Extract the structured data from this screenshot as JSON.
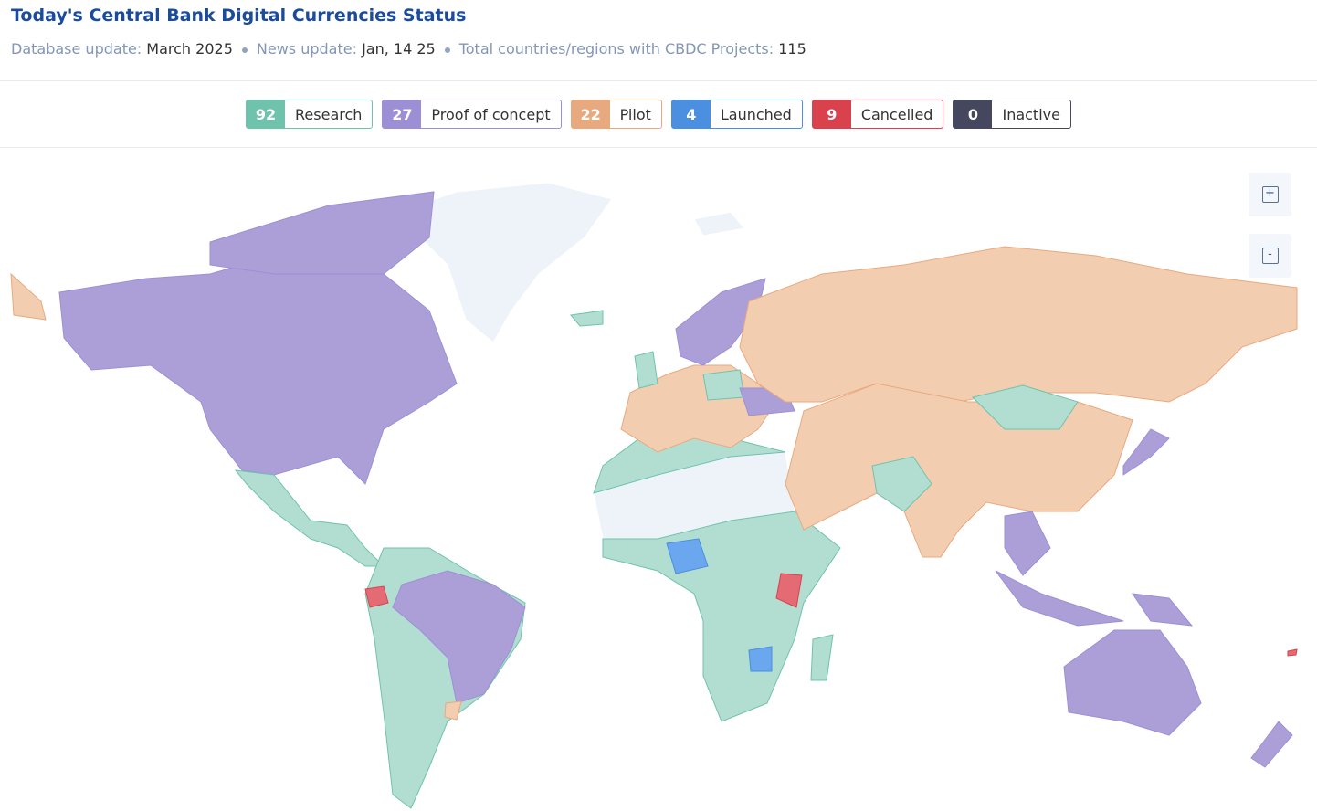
{
  "header": {
    "title": "Today's Central Bank Digital Currencies Status",
    "meta": [
      {
        "label": "Database update:",
        "value": "March 2025"
      },
      {
        "label": "News update:",
        "value": "Jan, 14 25"
      },
      {
        "label": "Total countries/regions with CBDC Projects:",
        "value": "115"
      }
    ]
  },
  "legend": [
    {
      "count": 92,
      "label": "Research",
      "color": "#6fc3ad",
      "fill": "#b2ddd1"
    },
    {
      "count": 27,
      "label": "Proof of concept",
      "color": "#9d8fd6",
      "fill": "#ac9fd8"
    },
    {
      "count": 22,
      "label": "Pilot",
      "color": "#e9a97f",
      "fill": "#f2cdb0"
    },
    {
      "count": 4,
      "label": "Launched",
      "color": "#4a8fe0",
      "fill": "#6aa7ee"
    },
    {
      "count": 9,
      "label": "Cancelled",
      "color": "#d9414d",
      "fill": "#e46b73"
    },
    {
      "count": 0,
      "label": "Inactive",
      "color": "#45475f"
    }
  ],
  "zoom": [
    "+",
    "-"
  ]
}
